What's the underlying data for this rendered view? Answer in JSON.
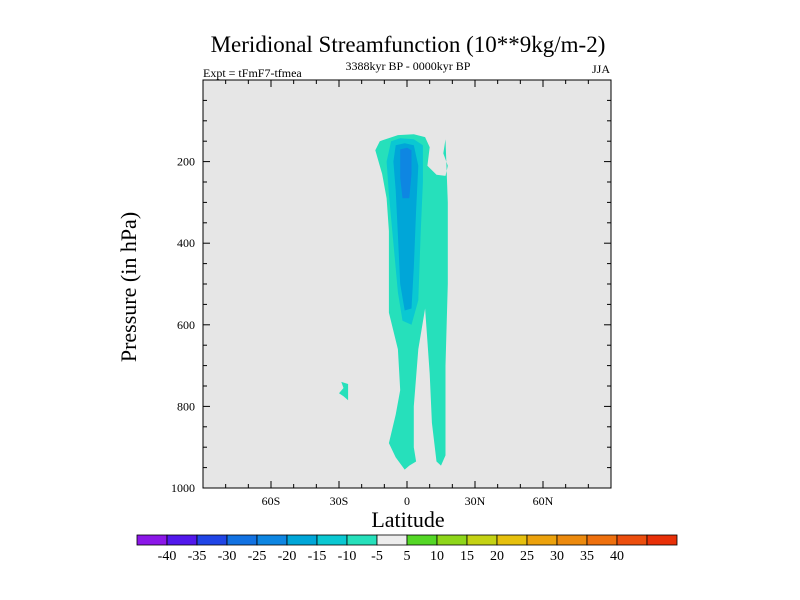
{
  "chart_data": {
    "type": "filled-contour",
    "title": "Meridional Streamfunction (10**9kg/m-2)",
    "subtitle_left": "Expt = tFmF7-tfmea",
    "subtitle_center": "3388kyr BP - 0000kyr BP",
    "subtitle_right": "JJA",
    "xlabel": "Latitude",
    "ylabel": "Pressure (in hPa)",
    "xlim": [
      -90,
      90
    ],
    "ylim": [
      1000,
      0
    ],
    "x_ticks": [
      {
        "value": -60,
        "label": "60S"
      },
      {
        "value": -30,
        "label": "30S"
      },
      {
        "value": 0,
        "label": "0"
      },
      {
        "value": 30,
        "label": "30N"
      },
      {
        "value": 60,
        "label": "60N"
      }
    ],
    "y_ticks": [
      {
        "value": 200,
        "label": "200"
      },
      {
        "value": 400,
        "label": "400"
      },
      {
        "value": 600,
        "label": "600"
      },
      {
        "value": 800,
        "label": "800"
      },
      {
        "value": 1000,
        "label": "1000"
      }
    ],
    "background_color": "#e6e6e6",
    "contour_regions": [
      {
        "name": "main-cell",
        "level": "-10 to -5",
        "color": "#26e0bb",
        "outline": [
          [
            -14,
            172
          ],
          [
            -12,
            150
          ],
          [
            -4,
            135
          ],
          [
            3,
            133
          ],
          [
            8,
            140
          ],
          [
            10,
            165
          ],
          [
            9,
            210
          ],
          [
            13,
            232
          ],
          [
            17,
            235
          ],
          [
            18,
            210
          ],
          [
            16,
            180
          ],
          [
            17,
            145
          ],
          [
            18,
            300
          ],
          [
            18,
            500
          ],
          [
            17,
            700
          ],
          [
            17,
            920
          ],
          [
            15,
            945
          ],
          [
            13,
            935
          ],
          [
            11,
            840
          ],
          [
            10,
            720
          ],
          [
            8,
            560
          ],
          [
            5,
            660
          ],
          [
            3,
            800
          ],
          [
            3,
            900
          ],
          [
            4,
            935
          ],
          [
            1,
            945
          ],
          [
            -1,
            955
          ],
          [
            -5,
            925
          ],
          [
            -8,
            890
          ],
          [
            -5,
            820
          ],
          [
            -3,
            760
          ],
          [
            -4,
            660
          ],
          [
            -8,
            570
          ],
          [
            -8,
            490
          ],
          [
            -8,
            370
          ],
          [
            -9,
            290
          ],
          [
            -11,
            230
          ]
        ]
      },
      {
        "name": "small-cell",
        "level": "-10 to -5",
        "color": "#26e0bb",
        "outline": [
          [
            -29,
            740
          ],
          [
            -26,
            745
          ],
          [
            -26,
            770
          ],
          [
            -26,
            785
          ],
          [
            -28,
            775
          ],
          [
            -30,
            768
          ],
          [
            -28,
            755
          ]
        ]
      },
      {
        "name": "inner-cell",
        "level": "-15 to -10",
        "color": "#0ac8d2",
        "outline": [
          [
            -7,
            150
          ],
          [
            -3,
            143
          ],
          [
            3,
            145
          ],
          [
            7,
            160
          ],
          [
            7,
            250
          ],
          [
            6,
            380
          ],
          [
            5,
            540
          ],
          [
            2,
            600
          ],
          [
            -2,
            590
          ],
          [
            -4,
            520
          ],
          [
            -6,
            400
          ],
          [
            -8,
            280
          ],
          [
            -9,
            200
          ]
        ]
      },
      {
        "name": "core-cell-1",
        "level": "-20 to -15",
        "color": "#00a6d8",
        "outline": [
          [
            -5,
            160
          ],
          [
            -1,
            155
          ],
          [
            3,
            160
          ],
          [
            5,
            210
          ],
          [
            4,
            320
          ],
          [
            3,
            460
          ],
          [
            2,
            560
          ],
          [
            -1,
            565
          ],
          [
            -3,
            500
          ],
          [
            -4,
            380
          ],
          [
            -5,
            270
          ],
          [
            -6,
            200
          ]
        ]
      },
      {
        "name": "core-cell-2",
        "level": "-25 to -20",
        "color": "#0e86e2",
        "outline": [
          [
            -3,
            170
          ],
          [
            0,
            166
          ],
          [
            2,
            172
          ],
          [
            2,
            230
          ],
          [
            1,
            290
          ],
          [
            -2,
            290
          ],
          [
            -3,
            240
          ]
        ]
      }
    ],
    "colorbar": {
      "colors": [
        "#8b17e8",
        "#5218ec",
        "#2045e6",
        "#1272e2",
        "#0e86e2",
        "#00a6d8",
        "#0ac8d2",
        "#26e0bb",
        "#ededed",
        "#54d726",
        "#8ed61a",
        "#c4d214",
        "#e6c00e",
        "#eca20c",
        "#ec8a0e",
        "#ee700e",
        "#ec4e0e",
        "#e83008"
      ],
      "labels": [
        "-40",
        "-35",
        "-30",
        "-25",
        "-20",
        "-15",
        "-10",
        "-5",
        "5",
        "10",
        "15",
        "20",
        "25",
        "30",
        "35",
        "40"
      ]
    }
  }
}
